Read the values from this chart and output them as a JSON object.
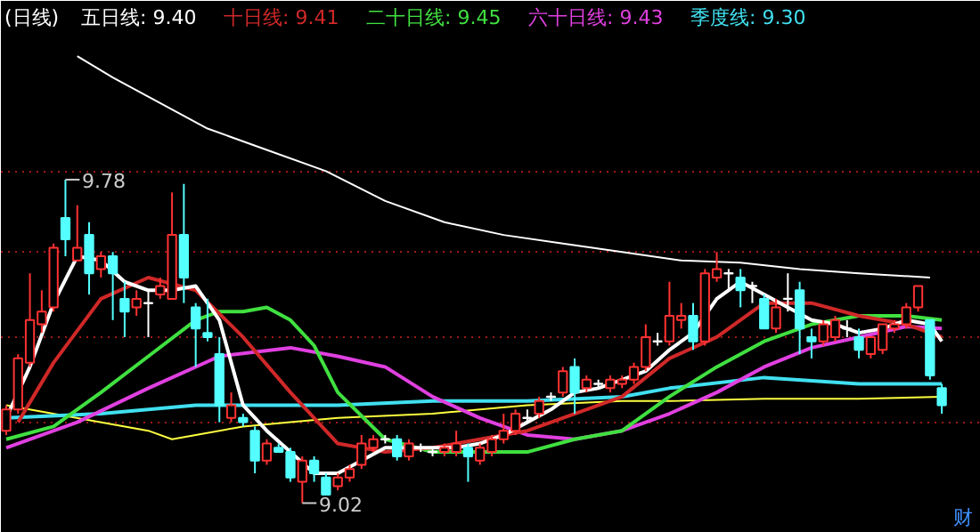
{
  "chart_data": {
    "type": "candlestick",
    "title": "(日线)",
    "categories": [
      null,
      null,
      null,
      null,
      null,
      null,
      null,
      null,
      null,
      null,
      null,
      null,
      null,
      null,
      null,
      null,
      null,
      null,
      null,
      null,
      null,
      null,
      null,
      null,
      null,
      null,
      null,
      null,
      null,
      null,
      null,
      null,
      null,
      null,
      null,
      null,
      null,
      null,
      null,
      null,
      null,
      null,
      null,
      null,
      null,
      null,
      null,
      null,
      null,
      null,
      null,
      null,
      null,
      null,
      null,
      null,
      null,
      null,
      null,
      null,
      null,
      null,
      null,
      null,
      null,
      null,
      null,
      null,
      null,
      null,
      null,
      null,
      null,
      null,
      null,
      null,
      null,
      null,
      null,
      null
    ],
    "ohlc": [
      [
        9.19,
        9.25,
        9.18,
        9.24
      ],
      [
        9.24,
        9.37,
        9.23,
        9.36
      ],
      [
        9.35,
        9.56,
        9.34,
        9.45
      ],
      [
        9.44,
        9.52,
        9.42,
        9.47
      ],
      [
        9.48,
        9.63,
        9.47,
        9.62
      ],
      [
        9.69,
        9.78,
        9.6,
        9.64
      ],
      [
        9.59,
        9.72,
        9.59,
        9.62
      ],
      [
        9.65,
        9.68,
        9.51,
        9.56
      ],
      [
        9.57,
        9.61,
        9.55,
        9.6
      ],
      [
        9.6,
        9.61,
        9.45,
        9.56
      ],
      [
        9.5,
        9.54,
        9.41,
        9.47
      ],
      [
        9.48,
        9.52,
        9.46,
        9.5
      ],
      [
        9.49,
        9.52,
        9.41,
        9.49
      ],
      [
        9.51,
        9.55,
        9.5,
        9.53
      ],
      [
        9.5,
        9.75,
        9.5,
        9.65
      ],
      [
        9.65,
        9.77,
        9.49,
        9.55
      ],
      [
        9.48,
        9.49,
        9.34,
        9.43
      ],
      [
        9.42,
        9.5,
        9.4,
        9.41
      ],
      [
        9.37,
        9.41,
        9.21,
        9.25
      ],
      [
        9.22,
        9.28,
        9.21,
        9.25
      ],
      [
        9.22,
        9.23,
        9.2,
        9.21
      ],
      [
        9.19,
        9.2,
        9.09,
        9.12
      ],
      [
        9.12,
        9.17,
        9.11,
        9.16
      ],
      [
        9.15,
        9.16,
        9.14,
        9.14
      ],
      [
        9.14,
        9.15,
        9.07,
        9.08
      ],
      [
        9.07,
        9.13,
        9.02,
        9.12
      ],
      [
        9.12,
        9.13,
        9.07,
        9.09
      ],
      [
        9.08,
        9.09,
        9.04,
        9.04
      ],
      [
        9.06,
        9.09,
        9.05,
        9.08
      ],
      [
        9.08,
        9.11,
        9.07,
        9.1
      ],
      [
        9.11,
        9.18,
        9.1,
        9.16
      ],
      [
        9.15,
        9.18,
        9.14,
        9.17
      ],
      [
        9.17,
        9.18,
        9.16,
        9.17
      ],
      [
        9.17,
        9.18,
        9.12,
        9.13
      ],
      [
        9.13,
        9.17,
        9.12,
        9.16
      ],
      [
        9.15,
        9.16,
        9.14,
        9.15
      ],
      [
        9.14,
        9.15,
        9.13,
        9.14
      ],
      [
        9.14,
        9.16,
        9.13,
        9.15
      ],
      [
        9.14,
        9.19,
        9.13,
        9.16
      ],
      [
        9.15,
        9.16,
        9.07,
        9.13
      ],
      [
        9.12,
        9.16,
        9.11,
        9.15
      ],
      [
        9.14,
        9.18,
        9.13,
        9.17
      ],
      [
        9.17,
        9.23,
        9.16,
        9.19
      ],
      [
        9.19,
        9.24,
        9.18,
        9.23
      ],
      [
        9.22,
        9.24,
        9.21,
        9.22
      ],
      [
        9.23,
        9.27,
        9.22,
        9.26
      ],
      [
        9.27,
        9.28,
        9.26,
        9.27
      ],
      [
        9.28,
        9.34,
        9.27,
        9.33
      ],
      [
        9.34,
        9.36,
        9.23,
        9.28
      ],
      [
        9.29,
        9.32,
        9.28,
        9.31
      ],
      [
        9.3,
        9.31,
        9.29,
        9.3
      ],
      [
        9.29,
        9.32,
        9.28,
        9.31
      ],
      [
        9.3,
        9.32,
        9.29,
        9.31
      ],
      [
        9.31,
        9.35,
        9.3,
        9.34
      ],
      [
        9.34,
        9.44,
        9.33,
        9.41
      ],
      [
        9.4,
        9.42,
        9.39,
        9.4
      ],
      [
        9.4,
        9.54,
        9.39,
        9.46
      ],
      [
        9.45,
        9.49,
        9.43,
        9.46
      ],
      [
        9.46,
        9.49,
        9.38,
        9.4
      ],
      [
        9.4,
        9.57,
        9.39,
        9.56
      ],
      [
        9.55,
        9.61,
        9.54,
        9.57
      ],
      [
        9.56,
        9.57,
        9.52,
        9.56
      ],
      [
        9.55,
        9.57,
        9.48,
        9.52
      ],
      [
        9.53,
        9.54,
        9.49,
        9.53
      ],
      [
        9.5,
        9.51,
        9.43,
        9.43
      ],
      [
        9.43,
        9.5,
        9.42,
        9.48
      ],
      [
        9.5,
        9.56,
        9.47,
        9.5
      ],
      [
        9.52,
        9.54,
        9.37,
        9.43
      ],
      [
        9.41,
        9.43,
        9.36,
        9.4
      ],
      [
        9.4,
        9.45,
        9.39,
        9.44
      ],
      [
        9.41,
        9.46,
        9.4,
        9.45
      ],
      [
        9.43,
        9.45,
        9.41,
        9.43
      ],
      [
        9.41,
        9.43,
        9.36,
        9.38
      ],
      [
        9.37,
        9.41,
        9.36,
        9.41
      ],
      [
        9.38,
        9.44,
        9.37,
        9.44
      ],
      [
        9.43,
        9.45,
        9.42,
        9.44
      ],
      [
        9.44,
        9.49,
        9.43,
        9.48
      ],
      [
        9.48,
        9.53,
        9.47,
        9.53
      ],
      [
        9.45,
        9.45,
        9.31,
        9.32
      ],
      [
        9.29,
        9.3,
        9.23,
        9.25
      ]
    ],
    "series": [
      {
        "type": "line",
        "color": "#ffffff",
        "values": [
          null,
          null,
          null,
          null,
          null,
          null,
          10.07,
          null,
          null,
          10.02,
          null,
          null,
          null,
          9.96,
          null,
          null,
          null,
          9.9,
          null,
          null,
          null,
          null,
          9.85,
          null,
          null,
          null,
          null,
          9.8,
          null,
          null,
          null,
          null,
          9.73,
          null,
          null,
          null,
          null,
          9.68,
          null,
          null,
          null,
          null,
          9.65,
          null,
          null,
          null,
          null,
          9.63,
          null,
          null,
          null,
          null,
          9.61,
          null,
          null,
          null,
          null,
          9.59,
          null,
          null,
          null,
          null,
          9.585,
          null,
          null,
          null,
          null,
          9.57,
          null,
          null,
          null,
          null,
          9.56,
          null,
          null,
          null,
          null,
          null,
          9.55,
          null
        ]
      },
      {
        "type": "line",
        "color": "#ffff40",
        "values": [
          9.25,
          null,
          null,
          null,
          null,
          null,
          null,
          null,
          null,
          null,
          null,
          null,
          9.19,
          null,
          9.17,
          null,
          9.18,
          null,
          null,
          null,
          9.2,
          null,
          null,
          null,
          9.21,
          null,
          null,
          null,
          9.22,
          null,
          null,
          null,
          null,
          null,
          null,
          null,
          9.23,
          null,
          null,
          null,
          null,
          null,
          null,
          null,
          9.25,
          null,
          null,
          null,
          null,
          null,
          null,
          null,
          9.26,
          null,
          null,
          null,
          9.26,
          null,
          null,
          null,
          null,
          null,
          null,
          null,
          9.265,
          null,
          null,
          null,
          null,
          null,
          null,
          null,
          9.265,
          null,
          null,
          null,
          null,
          null,
          null,
          9.27
        ]
      },
      {
        "type": "line",
        "name": "季度线: 9.30",
        "color": "#40e0f0",
        "values": [
          9.22,
          null,
          null,
          null,
          null,
          null,
          null,
          null,
          9.23,
          null,
          null,
          null,
          null,
          null,
          null,
          null,
          9.25,
          null,
          null,
          null,
          null,
          null,
          null,
          null,
          9.25,
          null,
          null,
          null,
          9.25,
          null,
          null,
          null,
          null,
          null,
          null,
          null,
          9.26,
          null,
          null,
          null,
          null,
          null,
          null,
          null,
          9.26,
          null,
          null,
          null,
          null,
          null,
          null,
          null,
          9.27,
          null,
          null,
          null,
          9.29,
          null,
          null,
          null,
          null,
          null,
          null,
          null,
          9.315,
          null,
          null,
          null,
          null,
          null,
          null,
          null,
          9.3,
          null,
          null,
          null,
          null,
          null,
          null,
          9.3
        ]
      },
      {
        "type": "line",
        "name": "六十日线: 9.43",
        "color": "#e040e0",
        "values": [
          9.15,
          null,
          null,
          null,
          null,
          null,
          9.21,
          null,
          null,
          null,
          null,
          null,
          9.29,
          null,
          null,
          null,
          null,
          null,
          9.365,
          null,
          null,
          null,
          null,
          null,
          9.385,
          null,
          null,
          null,
          9.365,
          null,
          null,
          null,
          9.34,
          null,
          null,
          null,
          9.27,
          null,
          null,
          null,
          9.22,
          null,
          null,
          null,
          9.18,
          null,
          null,
          null,
          9.17,
          null,
          null,
          null,
          9.19,
          null,
          null,
          null,
          9.23,
          null,
          null,
          null,
          9.28,
          null,
          null,
          null,
          9.34,
          null,
          null,
          null,
          9.385,
          null,
          null,
          null,
          9.41,
          null,
          null,
          null,
          9.435,
          null,
          null,
          9.43
        ]
      },
      {
        "type": "line",
        "name": "二十日线: 9.45",
        "color": "#40e040",
        "values": [
          9.17,
          null,
          null,
          null,
          9.2,
          null,
          null,
          null,
          9.28,
          null,
          null,
          null,
          9.365,
          null,
          null,
          null,
          9.45,
          null,
          9.47,
          null,
          9.47,
          null,
          9.48,
          null,
          9.45,
          null,
          9.39,
          null,
          9.28,
          null,
          null,
          null,
          9.17,
          null,
          null,
          null,
          9.14,
          null,
          null,
          null,
          9.14,
          null,
          null,
          null,
          9.14,
          null,
          null,
          null,
          9.17,
          null,
          null,
          null,
          9.19,
          null,
          null,
          null,
          9.27,
          null,
          null,
          null,
          9.34,
          null,
          null,
          null,
          9.4,
          null,
          null,
          null,
          9.44,
          null,
          null,
          null,
          9.46,
          null,
          null,
          null,
          9.46,
          null,
          null,
          9.45
        ]
      },
      {
        "type": "line",
        "name": "十日线: 9.41",
        "color": "#d02828",
        "values": [
          null,
          9.21,
          null,
          null,
          9.35,
          null,
          null,
          null,
          9.5,
          null,
          null,
          null,
          9.55,
          null,
          null,
          null,
          9.52,
          null,
          null,
          null,
          9.41,
          null,
          null,
          null,
          9.28,
          null,
          null,
          null,
          9.16,
          null,
          null,
          null,
          9.14,
          null,
          null,
          null,
          9.15,
          null,
          null,
          null,
          9.17,
          null,
          null,
          null,
          9.19,
          null,
          null,
          null,
          9.23,
          null,
          null,
          null,
          9.27,
          null,
          null,
          null,
          9.36,
          null,
          null,
          null,
          9.41,
          null,
          null,
          null,
          9.49,
          null,
          null,
          null,
          9.49,
          null,
          null,
          null,
          9.46,
          null,
          null,
          null,
          9.44,
          null,
          null,
          9.41
        ]
      },
      {
        "type": "line",
        "name": "五日线: 9.40",
        "color": "#ffffff",
        "values": [
          9.22,
          null,
          9.34,
          null,
          9.49,
          null,
          9.6,
          null,
          9.59,
          null,
          9.54,
          null,
          9.52,
          null,
          9.52,
          null,
          9.53,
          null,
          9.45,
          null,
          9.25,
          null,
          9.19,
          null,
          9.14,
          null,
          9.09,
          null,
          9.09,
          null,
          9.12,
          null,
          9.15,
          null,
          9.15,
          null,
          9.15,
          null,
          9.15,
          null,
          9.16,
          null,
          9.18,
          null,
          9.21,
          null,
          9.24,
          null,
          9.28,
          null,
          9.29,
          null,
          9.31,
          null,
          9.33,
          null,
          9.38,
          null,
          9.42,
          null,
          9.5,
          null,
          9.54,
          null,
          9.51,
          null,
          9.48,
          null,
          9.45,
          null,
          9.44,
          null,
          9.42,
          null,
          9.43,
          null,
          9.45,
          null,
          9.44,
          9.4
        ]
      }
    ],
    "ylim": [
      8.95,
      10.2
    ],
    "yticks": [
      {
        "value": 9.8,
        "label": null
      },
      {
        "value": 9.61,
        "label": null
      },
      {
        "value": 9.41,
        "label": null
      },
      {
        "value": 9.21,
        "label": null
      }
    ],
    "tick_labels": false,
    "grid": "y",
    "annotations": [
      "9.78",
      "9.02",
      "财"
    ]
  }
}
